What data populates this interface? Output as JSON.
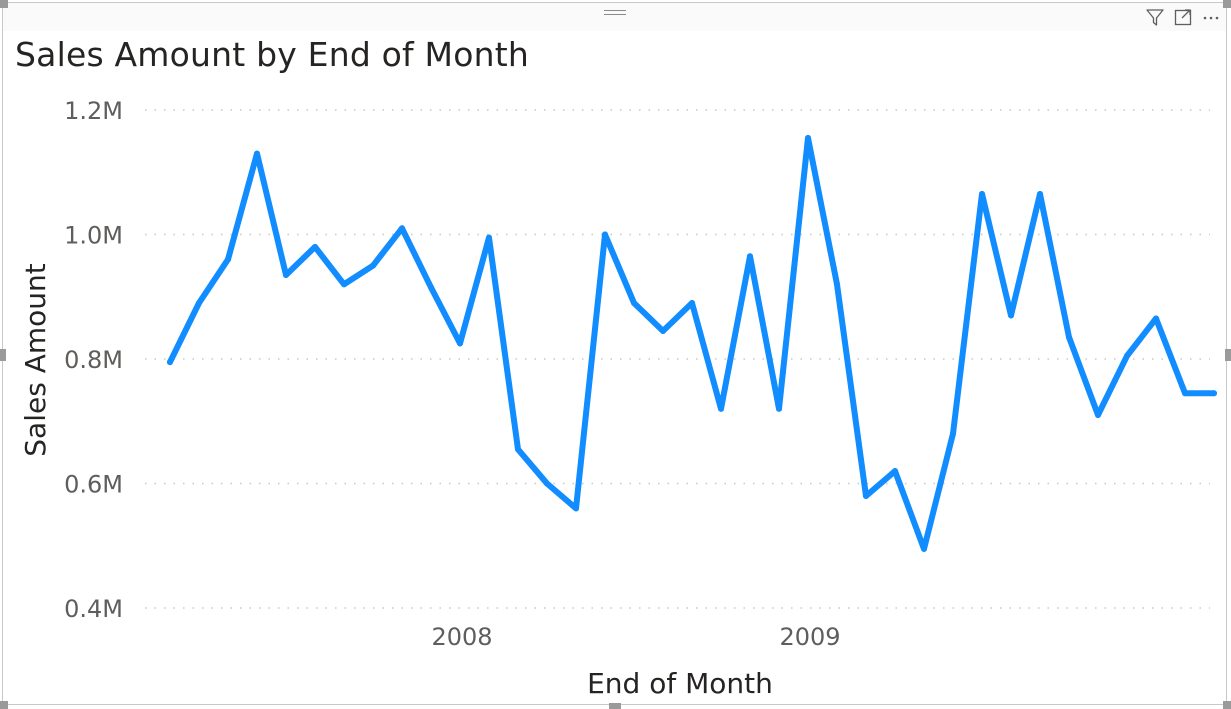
{
  "visual": {
    "header_icons": [
      {
        "name": "filter-icon"
      },
      {
        "name": "focus-mode-icon"
      },
      {
        "name": "more-options-icon"
      }
    ]
  },
  "chart_data": {
    "type": "line",
    "title": "Sales Amount by End of Month",
    "xlabel": "End of Month",
    "ylabel": "Sales Amount",
    "ylim": [
      0.4,
      1.2
    ],
    "yticks": [
      "0.4M",
      "0.6M",
      "0.8M",
      "1.0M",
      "1.2M"
    ],
    "ytick_values": [
      0.4,
      0.6,
      0.8,
      1.0,
      1.2
    ],
    "xticks": [
      "2008",
      "2009"
    ],
    "xtick_dates": [
      "2008-01",
      "2009-01"
    ],
    "grid": "dotted-horizontal",
    "line_color": "#118DFF",
    "series": [
      {
        "x": [
          "2007-03",
          "2007-04",
          "2007-05",
          "2007-06",
          "2007-07",
          "2007-08",
          "2007-09",
          "2007-10",
          "2007-11",
          "2007-12",
          "2008-01",
          "2008-02",
          "2008-03",
          "2008-04",
          "2008-05",
          "2008-06",
          "2008-07",
          "2008-08",
          "2008-09",
          "2008-10",
          "2008-11",
          "2008-12",
          "2009-01",
          "2009-02",
          "2009-03",
          "2009-04",
          "2009-05",
          "2009-06",
          "2009-07",
          "2009-08",
          "2009-09",
          "2009-10",
          "2009-11",
          "2009-12",
          "2010-01",
          "2010-02",
          "2010-03"
        ],
        "values": [
          0.795,
          0.89,
          0.96,
          1.13,
          0.935,
          0.98,
          0.92,
          0.95,
          1.01,
          0.915,
          0.825,
          0.995,
          0.655,
          0.6,
          0.56,
          1.0,
          0.89,
          0.845,
          0.89,
          0.72,
          0.965,
          0.72,
          1.155,
          0.92,
          0.58,
          0.62,
          0.495,
          0.68,
          1.065,
          0.87,
          1.065,
          0.835,
          0.71,
          0.805,
          0.865,
          0.745,
          0.745
        ]
      }
    ]
  }
}
